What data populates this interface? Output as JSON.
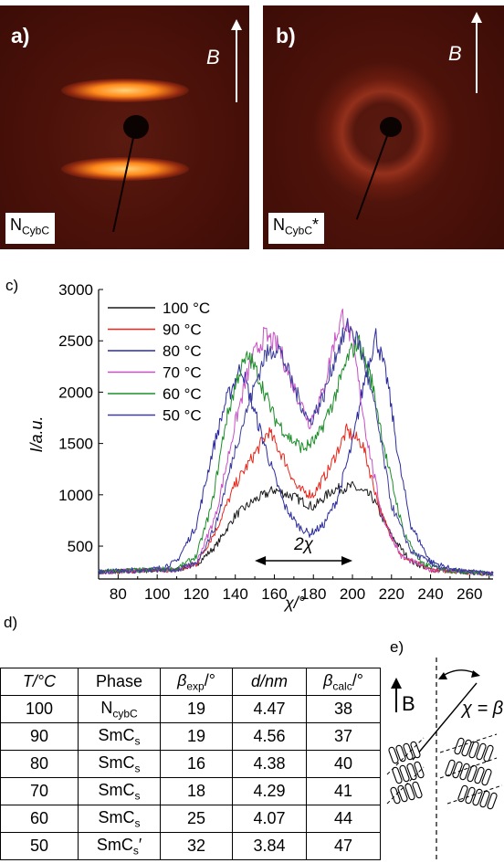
{
  "panels": [
    {
      "letter": "a)",
      "field": "B",
      "phase_main": "N",
      "phase_sub": "CybC",
      "phase_suffix": ""
    },
    {
      "letter": "b)",
      "field": "B",
      "phase_main": "N",
      "phase_sub": "CybC",
      "phase_suffix": "*"
    }
  ],
  "chart_panel_label": "c)",
  "chart_data": {
    "type": "line",
    "xlabel": "χ/°",
    "ylabel": "I/a.u.",
    "xlim": [
      70,
      272
    ],
    "ylim": [
      180,
      3000
    ],
    "xticks": [
      80,
      100,
      120,
      140,
      160,
      180,
      200,
      220,
      240,
      260
    ],
    "yticks": [
      500,
      1000,
      1500,
      2000,
      2500,
      3000
    ],
    "annotation": "2χ",
    "annotation_span": [
      150,
      200
    ],
    "legend_position": "top-left",
    "series": [
      {
        "name": "100 °C",
        "color": "#1a1a1a",
        "points": [
          [
            70,
            250
          ],
          [
            110,
            270
          ],
          [
            120,
            320
          ],
          [
            130,
            500
          ],
          [
            140,
            800
          ],
          [
            150,
            950
          ],
          [
            160,
            1050
          ],
          [
            170,
            980
          ],
          [
            180,
            880
          ],
          [
            190,
            1050
          ],
          [
            200,
            1080
          ],
          [
            210,
            980
          ],
          [
            220,
            600
          ],
          [
            230,
            350
          ],
          [
            240,
            270
          ],
          [
            272,
            230
          ]
        ]
      },
      {
        "name": "90 °C",
        "color": "#e8261b",
        "points": [
          [
            70,
            250
          ],
          [
            110,
            270
          ],
          [
            120,
            320
          ],
          [
            130,
            650
          ],
          [
            140,
            1100
          ],
          [
            150,
            1400
          ],
          [
            157,
            1620
          ],
          [
            165,
            1350
          ],
          [
            172,
            1050
          ],
          [
            180,
            1000
          ],
          [
            188,
            1250
          ],
          [
            197,
            1620
          ],
          [
            205,
            1500
          ],
          [
            215,
            800
          ],
          [
            225,
            400
          ],
          [
            240,
            270
          ],
          [
            272,
            230
          ]
        ]
      },
      {
        "name": "80 °C",
        "color": "#2b2b9e",
        "points": [
          [
            70,
            250
          ],
          [
            100,
            280
          ],
          [
            110,
            350
          ],
          [
            120,
            700
          ],
          [
            128,
            1400
          ],
          [
            135,
            1900
          ],
          [
            143,
            2250
          ],
          [
            150,
            1800
          ],
          [
            158,
            1300
          ],
          [
            165,
            900
          ],
          [
            172,
            700
          ],
          [
            178,
            620
          ],
          [
            185,
            700
          ],
          [
            192,
            950
          ],
          [
            200,
            1500
          ],
          [
            207,
            2200
          ],
          [
            212,
            2550
          ],
          [
            218,
            2100
          ],
          [
            224,
            1300
          ],
          [
            230,
            700
          ],
          [
            240,
            350
          ],
          [
            255,
            250
          ],
          [
            272,
            230
          ]
        ]
      },
      {
        "name": "70 °C",
        "color": "#c84fc6",
        "points": [
          [
            70,
            250
          ],
          [
            110,
            270
          ],
          [
            120,
            330
          ],
          [
            130,
            800
          ],
          [
            140,
            1700
          ],
          [
            148,
            2300
          ],
          [
            155,
            2550
          ],
          [
            162,
            2450
          ],
          [
            170,
            2050
          ],
          [
            178,
            1700
          ],
          [
            185,
            2000
          ],
          [
            190,
            2450
          ],
          [
            195,
            2750
          ],
          [
            200,
            2500
          ],
          [
            207,
            1600
          ],
          [
            215,
            800
          ],
          [
            225,
            400
          ],
          [
            240,
            270
          ],
          [
            272,
            230
          ]
        ]
      },
      {
        "name": "60 °C",
        "color": "#1d8f2a",
        "points": [
          [
            70,
            250
          ],
          [
            110,
            280
          ],
          [
            120,
            400
          ],
          [
            128,
            900
          ],
          [
            135,
            1700
          ],
          [
            142,
            2200
          ],
          [
            147,
            2350
          ],
          [
            152,
            2150
          ],
          [
            160,
            1750
          ],
          [
            168,
            1550
          ],
          [
            175,
            1450
          ],
          [
            182,
            1550
          ],
          [
            190,
            1900
          ],
          [
            198,
            2350
          ],
          [
            203,
            2500
          ],
          [
            210,
            2100
          ],
          [
            218,
            1300
          ],
          [
            226,
            650
          ],
          [
            235,
            330
          ],
          [
            250,
            260
          ],
          [
            272,
            230
          ]
        ]
      },
      {
        "name": "50 °C",
        "color": "#3d3d9c",
        "points": [
          [
            70,
            250
          ],
          [
            110,
            270
          ],
          [
            120,
            330
          ],
          [
            130,
            700
          ],
          [
            140,
            1450
          ],
          [
            148,
            1950
          ],
          [
            155,
            2350
          ],
          [
            162,
            2450
          ],
          [
            170,
            2050
          ],
          [
            178,
            1700
          ],
          [
            185,
            1950
          ],
          [
            192,
            2400
          ],
          [
            198,
            2650
          ],
          [
            204,
            2450
          ],
          [
            212,
            1800
          ],
          [
            220,
            900
          ],
          [
            230,
            450
          ],
          [
            245,
            280
          ],
          [
            272,
            230
          ]
        ]
      }
    ]
  },
  "table_label": "d)",
  "schematic_label": "e)",
  "schematic_field": "B",
  "schematic_chi": "χ = β",
  "table": {
    "headers": [
      {
        "main": "T/°C",
        "sub": "",
        "tail": ""
      },
      {
        "main": "Phase",
        "sub": "",
        "tail": ""
      },
      {
        "main": "β",
        "sub": "exp",
        "tail": "/°"
      },
      {
        "main": "d/nm",
        "sub": "",
        "tail": ""
      },
      {
        "main": "β",
        "sub": "calc",
        "tail": "/°"
      }
    ],
    "rows": [
      {
        "t": "100",
        "phase_main": "N",
        "phase_sub": "cybC",
        "phase_tail": "",
        "bexp": "19",
        "d": "4.47",
        "bcalc": "38"
      },
      {
        "t": "90",
        "phase_main": "SmC",
        "phase_sub": "s",
        "phase_tail": "",
        "bexp": "19",
        "d": "4.56",
        "bcalc": "37"
      },
      {
        "t": "80",
        "phase_main": "SmC",
        "phase_sub": "s",
        "phase_tail": "",
        "bexp": "16",
        "d": "4.38",
        "bcalc": "40"
      },
      {
        "t": "70",
        "phase_main": "SmC",
        "phase_sub": "s",
        "phase_tail": "",
        "bexp": "18",
        "d": "4.29",
        "bcalc": "41"
      },
      {
        "t": "60",
        "phase_main": "SmC",
        "phase_sub": "s",
        "phase_tail": "",
        "bexp": "25",
        "d": "4.07",
        "bcalc": "44"
      },
      {
        "t": "50",
        "phase_main": "SmC",
        "phase_sub": "s",
        "phase_tail": "′",
        "bexp": "32",
        "d": "3.84",
        "bcalc": "47"
      }
    ]
  }
}
